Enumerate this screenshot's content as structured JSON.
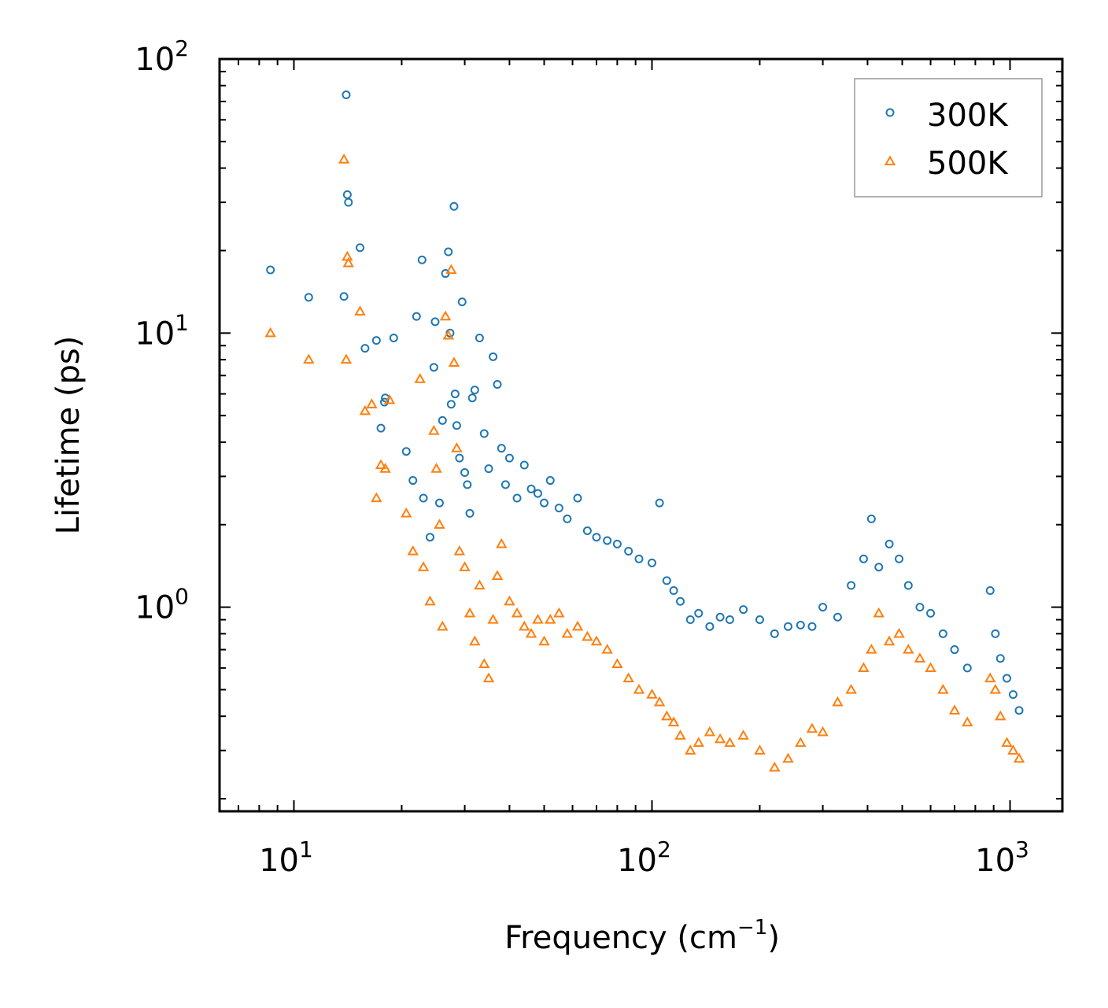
{
  "chart_data": {
    "type": "scatter",
    "title": "",
    "xlabel": "Frequency (cm",
    "xlabel_sup": "−1",
    "xlabel_suffix": ")",
    "ylabel": "Lifetime (ps)",
    "xscale": "log",
    "yscale": "log",
    "xlim": [
      6.2,
      1400
    ],
    "ylim": [
      0.18,
      100
    ],
    "grid": false,
    "legend_position": "top-right",
    "xticks": [
      {
        "value": 10,
        "base": "10",
        "exp": "1"
      },
      {
        "value": 100,
        "base": "10",
        "exp": "2"
      },
      {
        "value": 1000,
        "base": "10",
        "exp": "3"
      }
    ],
    "yticks": [
      {
        "value": 1,
        "base": "10",
        "exp": "0"
      },
      {
        "value": 10,
        "base": "10",
        "exp": "1"
      },
      {
        "value": 100,
        "base": "10",
        "exp": "2"
      }
    ],
    "series": [
      {
        "name": "300K",
        "marker": "circle",
        "color": "#1f77b4",
        "x": [
          8.6,
          11.0,
          13.8,
          14.0,
          14.1,
          14.2,
          15.3,
          15.8,
          17.0,
          17.5,
          17.9,
          18.0,
          19.0,
          20.6,
          21.5,
          22.0,
          22.8,
          23.0,
          24.0,
          24.6,
          24.8,
          25.5,
          26.0,
          26.5,
          27.0,
          27.3,
          27.5,
          28.0,
          28.2,
          28.5,
          29.0,
          29.5,
          30.0,
          30.5,
          31.0,
          31.5,
          32.0,
          33.0,
          34.0,
          35.0,
          36.0,
          37.0,
          38.0,
          39.0,
          40.0,
          42.0,
          44.0,
          46.0,
          48.0,
          50.0,
          52.0,
          55.0,
          58.0,
          62.0,
          66.0,
          70.0,
          75.0,
          80.0,
          86.0,
          92.0,
          100.0,
          105.0,
          110.0,
          115.0,
          120.0,
          128.0,
          135.0,
          145.0,
          155.0,
          165.0,
          180.0,
          200.0,
          220.0,
          240.0,
          260.0,
          280.0,
          300.0,
          330.0,
          360.0,
          390.0,
          410.0,
          430.0,
          460.0,
          490.0,
          520.0,
          560.0,
          600.0,
          650.0,
          700.0,
          760.0,
          880.0,
          910.0,
          940.0,
          980.0,
          1020.0,
          1060.0
        ],
        "y": [
          17.0,
          13.5,
          13.6,
          74.0,
          32.0,
          30.0,
          20.5,
          8.8,
          9.4,
          4.5,
          5.6,
          5.8,
          9.6,
          3.7,
          2.9,
          11.5,
          18.5,
          2.5,
          1.8,
          7.5,
          11.0,
          2.4,
          4.8,
          16.5,
          19.8,
          10.0,
          5.5,
          29.0,
          6.0,
          4.6,
          3.5,
          13.0,
          3.1,
          2.8,
          2.2,
          5.8,
          6.2,
          9.6,
          4.3,
          3.2,
          8.2,
          6.5,
          3.8,
          2.8,
          3.5,
          2.5,
          3.3,
          2.7,
          2.6,
          2.4,
          2.9,
          2.3,
          2.1,
          2.5,
          1.9,
          1.8,
          1.75,
          1.7,
          1.6,
          1.5,
          1.45,
          2.4,
          1.25,
          1.15,
          1.05,
          0.9,
          0.95,
          0.85,
          0.92,
          0.9,
          0.98,
          0.9,
          0.8,
          0.85,
          0.86,
          0.85,
          1.0,
          0.92,
          1.2,
          1.5,
          2.1,
          1.4,
          1.7,
          1.5,
          1.2,
          1.0,
          0.95,
          0.8,
          0.7,
          0.6,
          1.15,
          0.8,
          0.65,
          0.55,
          0.48,
          0.42
        ]
      },
      {
        "name": "500K",
        "marker": "triangle",
        "color": "#ff7f0e",
        "x": [
          8.6,
          11.0,
          13.8,
          14.0,
          14.1,
          14.2,
          15.3,
          15.8,
          16.5,
          17.0,
          17.5,
          18.0,
          18.5,
          20.6,
          21.5,
          22.5,
          23.0,
          24.0,
          24.6,
          25.0,
          25.5,
          26.0,
          26.5,
          27.0,
          27.5,
          28.0,
          28.5,
          29.0,
          30.0,
          31.0,
          32.0,
          33.0,
          34.0,
          35.0,
          36.0,
          37.0,
          38.0,
          40.0,
          42.0,
          44.0,
          46.0,
          48.0,
          50.0,
          52.0,
          55.0,
          58.0,
          62.0,
          66.0,
          70.0,
          75.0,
          80.0,
          86.0,
          92.0,
          100.0,
          105.0,
          110.0,
          115.0,
          120.0,
          128.0,
          135.0,
          145.0,
          155.0,
          165.0,
          180.0,
          200.0,
          220.0,
          240.0,
          260.0,
          280.0,
          300.0,
          330.0,
          360.0,
          390.0,
          410.0,
          430.0,
          460.0,
          490.0,
          520.0,
          560.0,
          600.0,
          650.0,
          700.0,
          760.0,
          880.0,
          910.0,
          940.0,
          980.0,
          1020.0,
          1060.0
        ],
        "y": [
          10.0,
          8.0,
          43.0,
          8.0,
          19.0,
          18.0,
          12.0,
          5.2,
          5.5,
          2.5,
          3.3,
          3.2,
          5.7,
          2.2,
          1.6,
          6.8,
          1.4,
          1.05,
          4.4,
          3.2,
          2.0,
          0.85,
          11.5,
          9.8,
          17.0,
          7.8,
          3.8,
          1.6,
          1.4,
          0.95,
          0.75,
          1.2,
          0.62,
          0.55,
          0.9,
          1.3,
          1.7,
          1.05,
          0.95,
          0.85,
          0.8,
          0.9,
          0.75,
          0.9,
          0.95,
          0.8,
          0.85,
          0.78,
          0.75,
          0.7,
          0.62,
          0.55,
          0.5,
          0.48,
          0.45,
          0.4,
          0.38,
          0.34,
          0.3,
          0.32,
          0.35,
          0.33,
          0.32,
          0.34,
          0.3,
          0.26,
          0.28,
          0.32,
          0.36,
          0.35,
          0.45,
          0.5,
          0.6,
          0.7,
          0.95,
          0.75,
          0.8,
          0.7,
          0.65,
          0.6,
          0.5,
          0.42,
          0.38,
          0.55,
          0.5,
          0.4,
          0.32,
          0.3,
          0.28
        ]
      }
    ]
  }
}
